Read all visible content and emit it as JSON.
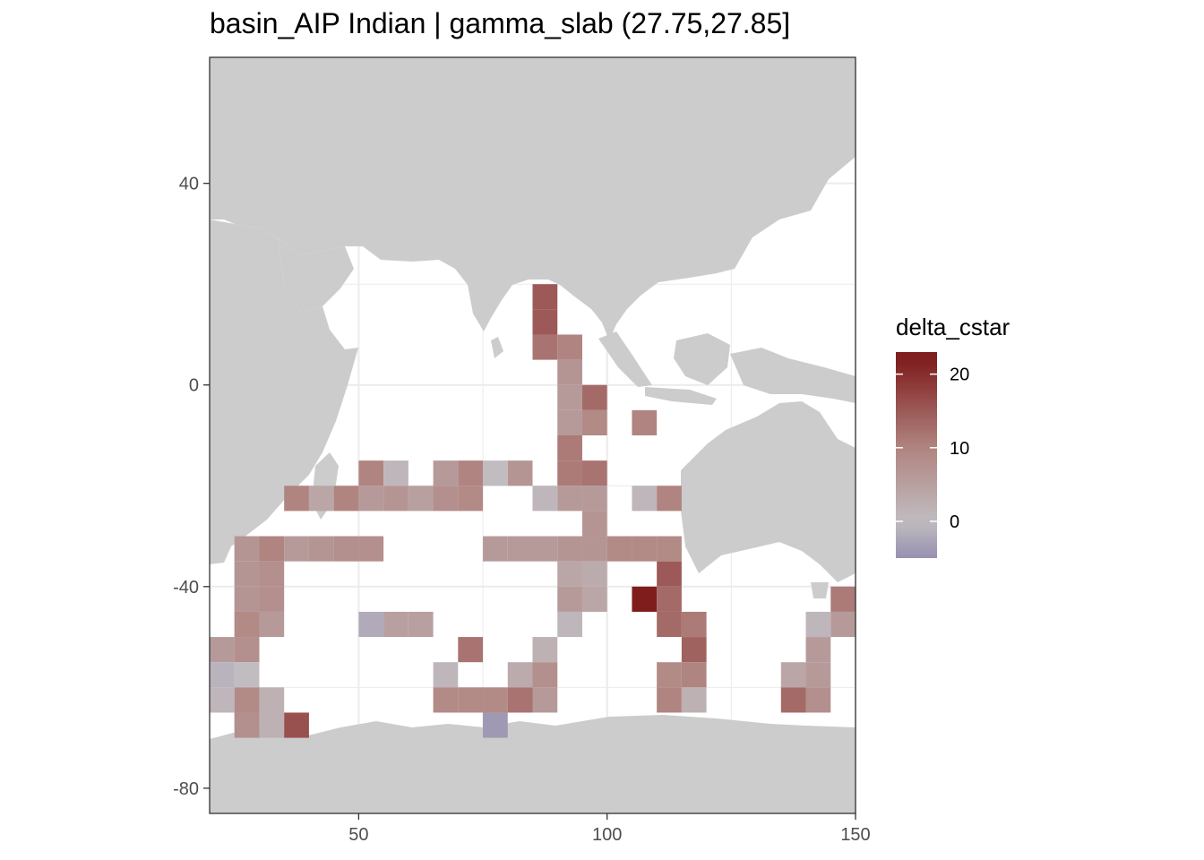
{
  "chart_data": {
    "type": "heatmap",
    "title": "basin_AIP Indian | gamma_slab (27.75,27.85]",
    "xlabel": "",
    "ylabel": "",
    "xlim": [
      20,
      150
    ],
    "ylim": [
      -85,
      65
    ],
    "x_ticks": [
      50,
      100,
      150
    ],
    "y_ticks": [
      40,
      0,
      -40,
      -80
    ],
    "grid": true,
    "cell_size_deg": 5,
    "colorscale": {
      "name": "delta_cstar",
      "stops": [
        {
          "value": -5,
          "color": "#9890b0"
        },
        {
          "value": 0,
          "color": "#c0bcc0"
        },
        {
          "value": 10,
          "color": "#b08480"
        },
        {
          "value": 22,
          "color": "#7f1d1d"
        }
      ],
      "range": [
        -5,
        23
      ],
      "ticks": [
        20,
        10,
        0
      ]
    },
    "land_color": "#cccccc",
    "legend": {
      "title": "delta_cstar",
      "placement": "right"
    },
    "cells": [
      {
        "lon": 87.5,
        "lat": 17.5,
        "v": 15
      },
      {
        "lon": 87.5,
        "lat": 12.5,
        "v": 15
      },
      {
        "lon": 87.5,
        "lat": 7.5,
        "v": 12
      },
      {
        "lon": 92.5,
        "lat": 7.5,
        "v": 10
      },
      {
        "lon": 92.5,
        "lat": 2.5,
        "v": 7
      },
      {
        "lon": 92.5,
        "lat": -2.5,
        "v": 6
      },
      {
        "lon": 97.5,
        "lat": -2.5,
        "v": 13
      },
      {
        "lon": 92.5,
        "lat": -7.5,
        "v": 6
      },
      {
        "lon": 97.5,
        "lat": -7.5,
        "v": 9
      },
      {
        "lon": 107.5,
        "lat": -7.5,
        "v": 10
      },
      {
        "lon": 92.5,
        "lat": -12.5,
        "v": 11
      },
      {
        "lon": 52.5,
        "lat": -17.5,
        "v": 10
      },
      {
        "lon": 57.5,
        "lat": -17.5,
        "v": 1
      },
      {
        "lon": 67.5,
        "lat": -17.5,
        "v": 6
      },
      {
        "lon": 72.5,
        "lat": -17.5,
        "v": 10
      },
      {
        "lon": 77.5,
        "lat": -17.5,
        "v": 0
      },
      {
        "lon": 82.5,
        "lat": -17.5,
        "v": 7
      },
      {
        "lon": 92.5,
        "lat": -17.5,
        "v": 11
      },
      {
        "lon": 97.5,
        "lat": -17.5,
        "v": 12
      },
      {
        "lon": 37.5,
        "lat": -22.5,
        "v": 10
      },
      {
        "lon": 42.5,
        "lat": -22.5,
        "v": 4
      },
      {
        "lon": 47.5,
        "lat": -22.5,
        "v": 10
      },
      {
        "lon": 52.5,
        "lat": -22.5,
        "v": 6
      },
      {
        "lon": 57.5,
        "lat": -22.5,
        "v": 7
      },
      {
        "lon": 62.5,
        "lat": -22.5,
        "v": 5
      },
      {
        "lon": 67.5,
        "lat": -22.5,
        "v": 8
      },
      {
        "lon": 72.5,
        "lat": -22.5,
        "v": 9
      },
      {
        "lon": 87.5,
        "lat": -22.5,
        "v": 1
      },
      {
        "lon": 92.5,
        "lat": -22.5,
        "v": 6
      },
      {
        "lon": 97.5,
        "lat": -22.5,
        "v": 6
      },
      {
        "lon": 107.5,
        "lat": -22.5,
        "v": 1
      },
      {
        "lon": 112.5,
        "lat": -22.5,
        "v": 10
      },
      {
        "lon": 97.5,
        "lat": -27.5,
        "v": 7
      },
      {
        "lon": 27.5,
        "lat": -32.5,
        "v": 7
      },
      {
        "lon": 32.5,
        "lat": -32.5,
        "v": 10
      },
      {
        "lon": 37.5,
        "lat": -32.5,
        "v": 6
      },
      {
        "lon": 42.5,
        "lat": -32.5,
        "v": 7
      },
      {
        "lon": 47.5,
        "lat": -32.5,
        "v": 8
      },
      {
        "lon": 52.5,
        "lat": -32.5,
        "v": 8
      },
      {
        "lon": 77.5,
        "lat": -32.5,
        "v": 6
      },
      {
        "lon": 82.5,
        "lat": -32.5,
        "v": 6
      },
      {
        "lon": 87.5,
        "lat": -32.5,
        "v": 6
      },
      {
        "lon": 92.5,
        "lat": -32.5,
        "v": 7
      },
      {
        "lon": 97.5,
        "lat": -32.5,
        "v": 7
      },
      {
        "lon": 102.5,
        "lat": -32.5,
        "v": 9
      },
      {
        "lon": 107.5,
        "lat": -32.5,
        "v": 9
      },
      {
        "lon": 112.5,
        "lat": -32.5,
        "v": 9
      },
      {
        "lon": 27.5,
        "lat": -37.5,
        "v": 7
      },
      {
        "lon": 32.5,
        "lat": -37.5,
        "v": 8
      },
      {
        "lon": 92.5,
        "lat": -37.5,
        "v": 4
      },
      {
        "lon": 97.5,
        "lat": -37.5,
        "v": 3
      },
      {
        "lon": 112.5,
        "lat": -37.5,
        "v": 15
      },
      {
        "lon": 27.5,
        "lat": -42.5,
        "v": 7
      },
      {
        "lon": 32.5,
        "lat": -42.5,
        "v": 8
      },
      {
        "lon": 92.5,
        "lat": -42.5,
        "v": 6
      },
      {
        "lon": 97.5,
        "lat": -42.5,
        "v": 4
      },
      {
        "lon": 107.5,
        "lat": -42.5,
        "v": 22
      },
      {
        "lon": 112.5,
        "lat": -42.5,
        "v": 13
      },
      {
        "lon": 147.5,
        "lat": -42.5,
        "v": 11
      },
      {
        "lon": 27.5,
        "lat": -47.5,
        "v": 9
      },
      {
        "lon": 32.5,
        "lat": -47.5,
        "v": 6
      },
      {
        "lon": 52.5,
        "lat": -47.5,
        "v": -2
      },
      {
        "lon": 57.5,
        "lat": -47.5,
        "v": 5
      },
      {
        "lon": 62.5,
        "lat": -47.5,
        "v": 5
      },
      {
        "lon": 92.5,
        "lat": -47.5,
        "v": 1
      },
      {
        "lon": 112.5,
        "lat": -47.5,
        "v": 13
      },
      {
        "lon": 117.5,
        "lat": -47.5,
        "v": 11
      },
      {
        "lon": 142.5,
        "lat": -47.5,
        "v": 1
      },
      {
        "lon": 147.5,
        "lat": -47.5,
        "v": 6
      },
      {
        "lon": 22.5,
        "lat": -52.5,
        "v": 6
      },
      {
        "lon": 27.5,
        "lat": -52.5,
        "v": 8
      },
      {
        "lon": 72.5,
        "lat": -52.5,
        "v": 12
      },
      {
        "lon": 87.5,
        "lat": -52.5,
        "v": 2
      },
      {
        "lon": 117.5,
        "lat": -52.5,
        "v": 14
      },
      {
        "lon": 142.5,
        "lat": -52.5,
        "v": 6
      },
      {
        "lon": 22.5,
        "lat": -57.5,
        "v": -1
      },
      {
        "lon": 27.5,
        "lat": -57.5,
        "v": 0
      },
      {
        "lon": 67.5,
        "lat": -57.5,
        "v": 1
      },
      {
        "lon": 82.5,
        "lat": -57.5,
        "v": 3
      },
      {
        "lon": 87.5,
        "lat": -57.5,
        "v": 8
      },
      {
        "lon": 112.5,
        "lat": -57.5,
        "v": 9
      },
      {
        "lon": 117.5,
        "lat": -57.5,
        "v": 10
      },
      {
        "lon": 137.5,
        "lat": -57.5,
        "v": 4
      },
      {
        "lon": 142.5,
        "lat": -57.5,
        "v": 6
      },
      {
        "lon": 22.5,
        "lat": -62.5,
        "v": 1
      },
      {
        "lon": 27.5,
        "lat": -62.5,
        "v": 9
      },
      {
        "lon": 32.5,
        "lat": -62.5,
        "v": 2
      },
      {
        "lon": 67.5,
        "lat": -62.5,
        "v": 9
      },
      {
        "lon": 72.5,
        "lat": -62.5,
        "v": 9
      },
      {
        "lon": 77.5,
        "lat": -62.5,
        "v": 9
      },
      {
        "lon": 82.5,
        "lat": -62.5,
        "v": 12
      },
      {
        "lon": 87.5,
        "lat": -62.5,
        "v": 6
      },
      {
        "lon": 112.5,
        "lat": -62.5,
        "v": 10
      },
      {
        "lon": 117.5,
        "lat": -62.5,
        "v": 2
      },
      {
        "lon": 137.5,
        "lat": -62.5,
        "v": 13
      },
      {
        "lon": 142.5,
        "lat": -62.5,
        "v": 8
      },
      {
        "lon": 27.5,
        "lat": -67.5,
        "v": 8
      },
      {
        "lon": 32.5,
        "lat": -67.5,
        "v": 2
      },
      {
        "lon": 37.5,
        "lat": -67.5,
        "v": 16
      },
      {
        "lon": 77.5,
        "lat": -67.5,
        "v": -4
      }
    ]
  }
}
